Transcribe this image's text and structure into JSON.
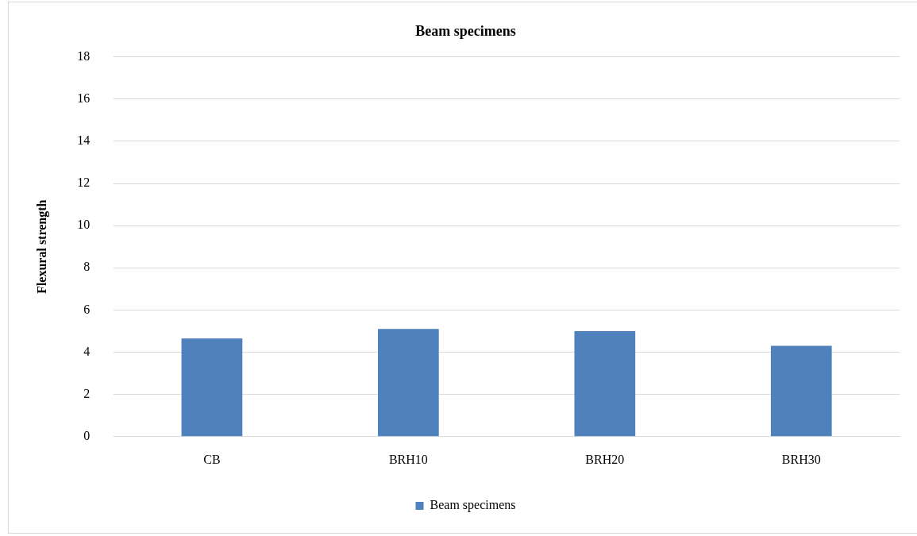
{
  "chart_data": {
    "type": "bar",
    "title": "Beam specimens",
    "ylabel": "Flexural strength",
    "categories": [
      "CB",
      "BRH10",
      "BRH20",
      "BRH30"
    ],
    "series": [
      {
        "name": "Beam specimens",
        "color": "#4f81bd",
        "values": [
          4.65,
          5.1,
          5.0,
          4.3
        ]
      }
    ],
    "ylim": [
      0,
      18
    ],
    "yticks": [
      0,
      2,
      4,
      6,
      8,
      10,
      12,
      14,
      16,
      18
    ],
    "grid": "y",
    "legend": "bottom"
  }
}
